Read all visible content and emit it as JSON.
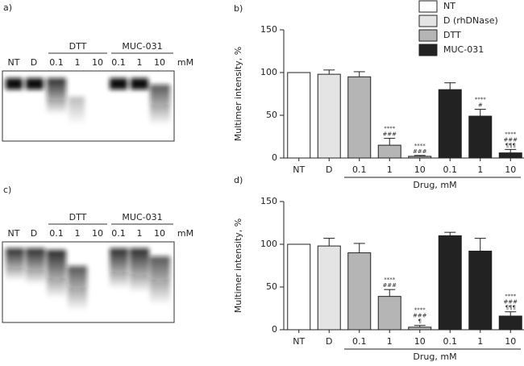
{
  "gels": [
    {
      "label": "a)",
      "groups": [
        "DTT",
        "MUC-031"
      ],
      "lanes": [
        "NT",
        "D",
        "0.1",
        "1",
        "10",
        "0.1",
        "1",
        "10"
      ],
      "unit": "mM"
    },
    {
      "label": "c)",
      "groups": [
        "DTT",
        "MUC-031"
      ],
      "lanes": [
        "NT",
        "D",
        "0.1",
        "1",
        "10",
        "0.1",
        "1",
        "10"
      ],
      "unit": "mM"
    }
  ],
  "chart_data": [
    {
      "type": "bar",
      "panel": "b)",
      "ylabel": "Multimer intensity, %",
      "xlabel": "Drug, mM",
      "categories": [
        "NT",
        "D",
        "0.1",
        "1",
        "10",
        "0.1",
        "1",
        "10"
      ],
      "ylim": [
        0,
        150
      ],
      "yticks": [
        0,
        50,
        100,
        150
      ],
      "legend": "top right",
      "series": [
        {
          "name": "NT",
          "color": "#ffffff",
          "values": [
            100,
            null,
            null,
            null,
            null,
            null,
            null,
            null
          ],
          "errors": [
            0,
            null,
            null,
            null,
            null,
            null,
            null,
            null
          ]
        },
        {
          "name": "D (rhDNase)",
          "color": "#e4e4e4",
          "values": [
            null,
            98,
            null,
            null,
            null,
            null,
            null,
            null
          ],
          "errors": [
            null,
            5,
            null,
            null,
            null,
            null,
            null,
            null
          ]
        },
        {
          "name": "DTT",
          "color": "#b5b5b5",
          "values": [
            null,
            null,
            95,
            15,
            2,
            null,
            null,
            null
          ],
          "errors": [
            null,
            null,
            6,
            8,
            1,
            null,
            null,
            null
          ]
        },
        {
          "name": "MUC-031",
          "color": "#222222",
          "values": [
            null,
            null,
            null,
            null,
            null,
            80,
            49,
            6
          ],
          "errors": [
            null,
            null,
            null,
            null,
            null,
            8,
            8,
            4
          ]
        }
      ],
      "annotations": [
        [],
        [],
        [],
        [
          "****",
          "###"
        ],
        [
          "****",
          "###"
        ],
        [],
        [
          "****",
          "#"
        ],
        [
          "****",
          "###",
          "¶¶¶"
        ]
      ]
    },
    {
      "type": "bar",
      "panel": "d)",
      "ylabel": "Multimer intensity, %",
      "xlabel": "Drug, mM",
      "categories": [
        "NT",
        "D",
        "0.1",
        "1",
        "10",
        "0.1",
        "1",
        "10"
      ],
      "ylim": [
        0,
        150
      ],
      "yticks": [
        0,
        50,
        100,
        150
      ],
      "series": [
        {
          "name": "NT",
          "color": "#ffffff",
          "values": [
            100,
            null,
            null,
            null,
            null,
            null,
            null,
            null
          ],
          "errors": [
            0,
            null,
            null,
            null,
            null,
            null,
            null,
            null
          ]
        },
        {
          "name": "D (rhDNase)",
          "color": "#e4e4e4",
          "values": [
            null,
            98,
            null,
            null,
            null,
            null,
            null,
            null
          ],
          "errors": [
            null,
            9,
            null,
            null,
            null,
            null,
            null,
            null
          ]
        },
        {
          "name": "DTT",
          "color": "#b5b5b5",
          "values": [
            null,
            null,
            90,
            39,
            3,
            null,
            null,
            null
          ],
          "errors": [
            null,
            null,
            11,
            8,
            2,
            null,
            null,
            null
          ]
        },
        {
          "name": "MUC-031",
          "color": "#222222",
          "values": [
            null,
            null,
            null,
            null,
            null,
            110,
            92,
            16
          ],
          "errors": [
            null,
            null,
            null,
            null,
            null,
            4,
            15,
            5
          ]
        }
      ],
      "annotations": [
        [],
        [],
        [],
        [
          "****",
          "###"
        ],
        [
          "****",
          "###",
          "¶"
        ],
        [],
        [],
        [
          "****",
          "###",
          "¶¶¶"
        ]
      ]
    }
  ]
}
